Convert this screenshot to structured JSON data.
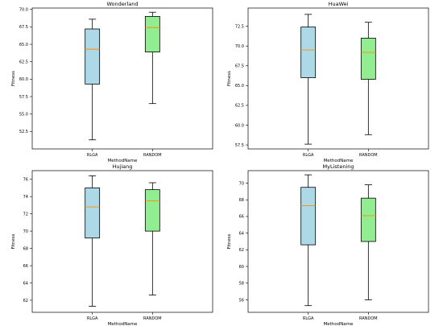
{
  "chart_data": [
    {
      "type": "box",
      "title": "Wonderland",
      "xlabel": "MethodName",
      "ylabel": "Fitness",
      "categories": [
        "RLGA",
        "RANDOM"
      ],
      "ylim": [
        50.0,
        70.2
      ],
      "yticks": [
        "52.5",
        "55.0",
        "57.5",
        "60.0",
        "62.5",
        "65.0",
        "67.5",
        "70.0"
      ],
      "boxes": [
        {
          "name": "RLGA",
          "min": 51.3,
          "q1": 59.3,
          "median": 64.3,
          "q3": 67.2,
          "max": 68.6,
          "color": "#add8e6"
        },
        {
          "name": "RANDOM",
          "min": 56.5,
          "q1": 63.9,
          "median": 67.4,
          "q3": 69.0,
          "max": 69.6,
          "color": "#90ee90"
        }
      ]
    },
    {
      "type": "box",
      "title": "HuaWei",
      "xlabel": "MethodName",
      "ylabel": "Fitness",
      "categories": [
        "RLGA",
        "RANDOM"
      ],
      "ylim": [
        57.0,
        74.8
      ],
      "yticks": [
        "57.5",
        "60.0",
        "62.5",
        "65.0",
        "67.5",
        "70.0",
        "72.5"
      ],
      "boxes": [
        {
          "name": "RLGA",
          "min": 57.6,
          "q1": 66.0,
          "median": 69.5,
          "q3": 72.4,
          "max": 74.0,
          "color": "#add8e6"
        },
        {
          "name": "RANDOM",
          "min": 58.8,
          "q1": 65.8,
          "median": 69.2,
          "q3": 71.0,
          "max": 73.0,
          "color": "#90ee90"
        }
      ]
    },
    {
      "type": "box",
      "title": "Hujiang",
      "xlabel": "MethodName",
      "ylabel": "Fitness",
      "categories": [
        "RLGA",
        "RANDOM"
      ],
      "ylim": [
        60.6,
        77.0
      ],
      "yticks": [
        "62",
        "64",
        "66",
        "68",
        "70",
        "72",
        "74",
        "76"
      ],
      "boxes": [
        {
          "name": "RLGA",
          "min": 61.3,
          "q1": 69.2,
          "median": 72.8,
          "q3": 75.0,
          "max": 76.4,
          "color": "#add8e6"
        },
        {
          "name": "RANDOM",
          "min": 62.6,
          "q1": 70.0,
          "median": 73.5,
          "q3": 74.8,
          "max": 75.6,
          "color": "#90ee90"
        }
      ]
    },
    {
      "type": "box",
      "title": "MyListening",
      "xlabel": "MethodName",
      "ylabel": "Fitness",
      "categories": [
        "RLGA",
        "RANDOM"
      ],
      "ylim": [
        54.5,
        71.5
      ],
      "yticks": [
        "56",
        "58",
        "60",
        "62",
        "64",
        "66",
        "68",
        "70"
      ],
      "boxes": [
        {
          "name": "RLGA",
          "min": 55.3,
          "q1": 62.6,
          "median": 67.3,
          "q3": 69.5,
          "max": 71.0,
          "color": "#add8e6"
        },
        {
          "name": "RANDOM",
          "min": 56.0,
          "q1": 63.0,
          "median": 66.1,
          "q3": 68.2,
          "max": 69.8,
          "color": "#90ee90"
        }
      ]
    }
  ]
}
